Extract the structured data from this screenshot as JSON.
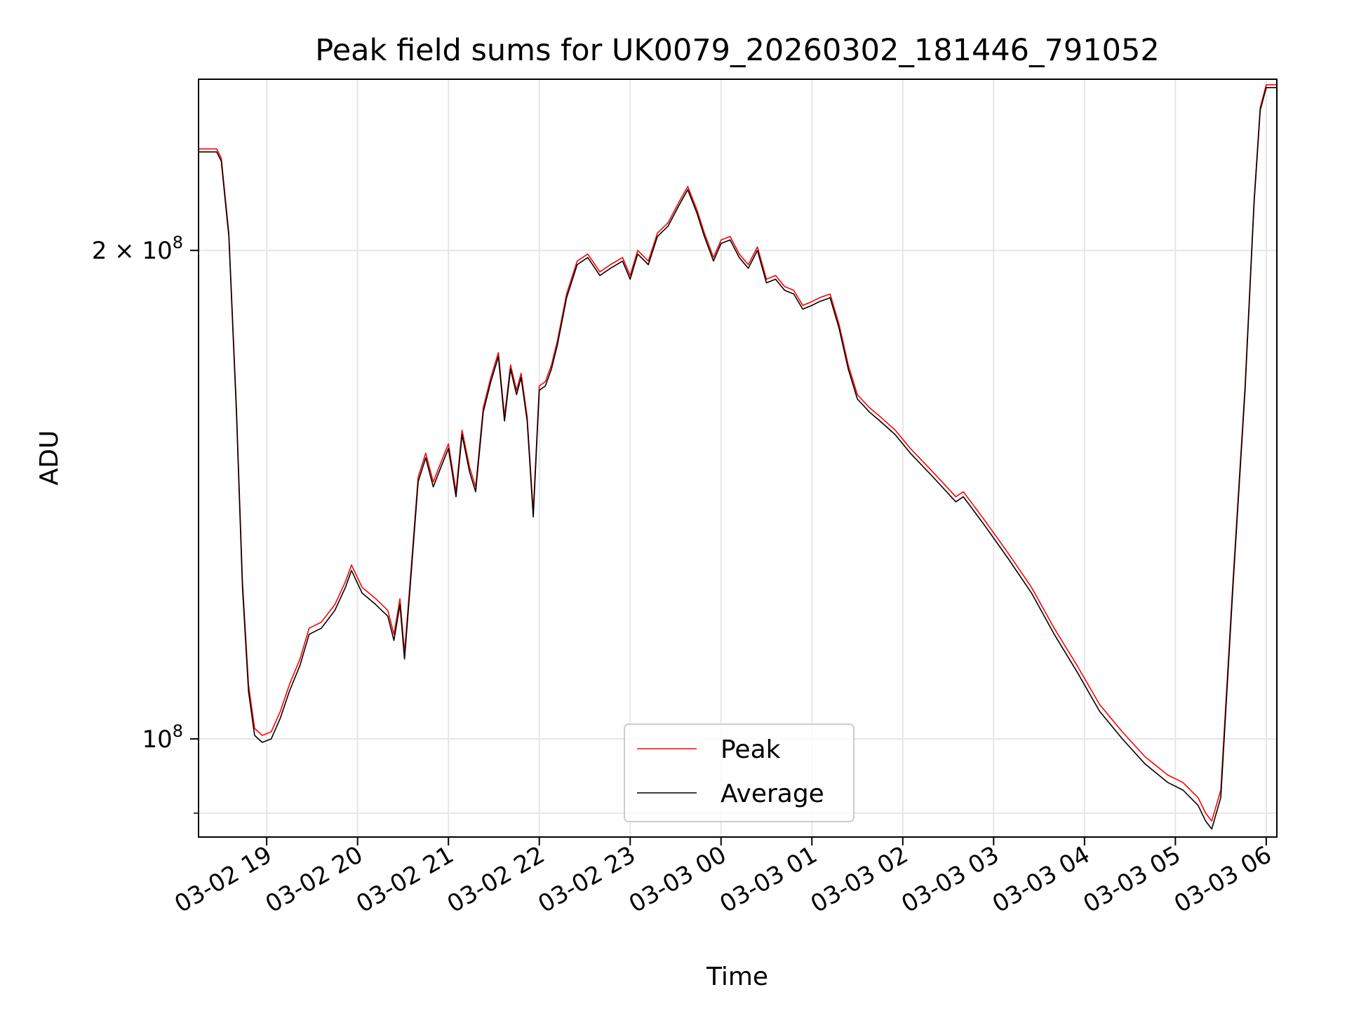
{
  "chart_data": {
    "type": "line",
    "title": "Peak field sums for UK0079_20260302_181446_791052",
    "xlabel": "Time",
    "ylabel": "ADU",
    "x_scale": "time",
    "y_scale": "log",
    "xlim": [
      "2026-03-02 18:15",
      "2026-03-03 06:07"
    ],
    "ylim": [
      87000000,
      255000000
    ],
    "x_ticks": [
      {
        "value": "2026-03-02 19:00",
        "label": "03-02 19"
      },
      {
        "value": "2026-03-02 20:00",
        "label": "03-02 20"
      },
      {
        "value": "2026-03-02 21:00",
        "label": "03-02 21"
      },
      {
        "value": "2026-03-02 22:00",
        "label": "03-02 22"
      },
      {
        "value": "2026-03-02 23:00",
        "label": "03-02 23"
      },
      {
        "value": "2026-03-03 00:00",
        "label": "03-03 00"
      },
      {
        "value": "2026-03-03 01:00",
        "label": "03-03 01"
      },
      {
        "value": "2026-03-03 02:00",
        "label": "03-03 02"
      },
      {
        "value": "2026-03-03 03:00",
        "label": "03-03 03"
      },
      {
        "value": "2026-03-03 04:00",
        "label": "03-03 04"
      },
      {
        "value": "2026-03-03 05:00",
        "label": "03-03 05"
      },
      {
        "value": "2026-03-03 06:00",
        "label": "03-03 06"
      }
    ],
    "y_ticks": [
      {
        "value": 100000000,
        "base": "10",
        "exp": "8",
        "label": ""
      },
      {
        "value": 200000000,
        "base": "10",
        "exp": "8",
        "label": "2 × "
      }
    ],
    "y_minor_ticks": [
      90000000
    ],
    "grid": true,
    "legend": {
      "position": "lower center",
      "entries": [
        "Peak",
        "Average"
      ]
    },
    "series": [
      {
        "name": "Peak",
        "color": "#ff0000",
        "x": [
          "2026-03-02 18:15",
          "2026-03-02 18:27",
          "2026-03-02 18:30",
          "2026-03-02 18:35",
          "2026-03-02 18:40",
          "2026-03-02 18:44",
          "2026-03-02 18:48",
          "2026-03-02 18:52",
          "2026-03-02 18:57",
          "2026-03-02 19:03",
          "2026-03-02 19:09",
          "2026-03-02 19:15",
          "2026-03-02 19:22",
          "2026-03-02 19:28",
          "2026-03-02 19:36",
          "2026-03-02 19:45",
          "2026-03-02 19:52",
          "2026-03-02 19:56",
          "2026-03-02 20:03",
          "2026-03-02 20:12",
          "2026-03-02 20:20",
          "2026-03-02 20:24",
          "2026-03-02 20:28",
          "2026-03-02 20:31",
          "2026-03-02 20:35",
          "2026-03-02 20:40",
          "2026-03-02 20:45",
          "2026-03-02 20:50",
          "2026-03-02 20:55",
          "2026-03-02 21:00",
          "2026-03-02 21:05",
          "2026-03-02 21:09",
          "2026-03-02 21:14",
          "2026-03-02 21:18",
          "2026-03-02 21:23",
          "2026-03-02 21:28",
          "2026-03-02 21:33",
          "2026-03-02 21:37",
          "2026-03-02 21:41",
          "2026-03-02 21:45",
          "2026-03-02 21:48",
          "2026-03-02 21:52",
          "2026-03-02 21:56",
          "2026-03-02 22:00",
          "2026-03-02 22:04",
          "2026-03-02 22:08",
          "2026-03-02 22:12",
          "2026-03-02 22:18",
          "2026-03-02 22:25",
          "2026-03-02 22:32",
          "2026-03-02 22:40",
          "2026-03-02 22:47",
          "2026-03-02 22:55",
          "2026-03-02 23:00",
          "2026-03-02 23:05",
          "2026-03-02 23:12",
          "2026-03-02 23:18",
          "2026-03-02 23:25",
          "2026-03-02 23:32",
          "2026-03-02 23:38",
          "2026-03-02 23:44",
          "2026-03-02 23:49",
          "2026-03-02 23:55",
          "2026-03-03 00:00",
          "2026-03-03 00:06",
          "2026-03-03 00:12",
          "2026-03-03 00:18",
          "2026-03-03 00:24",
          "2026-03-03 00:30",
          "2026-03-03 00:36",
          "2026-03-03 00:42",
          "2026-03-03 00:48",
          "2026-03-03 00:54",
          "2026-03-03 01:00",
          "2026-03-03 01:05",
          "2026-03-03 01:12",
          "2026-03-03 01:18",
          "2026-03-03 01:24",
          "2026-03-03 01:30",
          "2026-03-03 01:38",
          "2026-03-03 01:45",
          "2026-03-03 01:55",
          "2026-03-03 02:05",
          "2026-03-03 02:20",
          "2026-03-03 02:35",
          "2026-03-03 02:40",
          "2026-03-03 02:45",
          "2026-03-03 02:55",
          "2026-03-03 03:10",
          "2026-03-03 03:25",
          "2026-03-03 03:40",
          "2026-03-03 03:55",
          "2026-03-03 04:10",
          "2026-03-03 04:25",
          "2026-03-03 04:40",
          "2026-03-03 04:55",
          "2026-03-03 05:05",
          "2026-03-03 05:15",
          "2026-03-03 05:20",
          "2026-03-03 05:24",
          "2026-03-03 05:30",
          "2026-03-03 05:38",
          "2026-03-03 05:46",
          "2026-03-03 05:52",
          "2026-03-03 05:56",
          "2026-03-03 06:00",
          "2026-03-03 06:07"
        ],
        "values": [
          231000000,
          231000000,
          228000000,
          205000000,
          160000000,
          125000000,
          108000000,
          101500000,
          100500000,
          101000000,
          104000000,
          108000000,
          112000000,
          117000000,
          118000000,
          121000000,
          125000000,
          128000000,
          124000000,
          122000000,
          120000000,
          116000000,
          122000000,
          113000000,
          126000000,
          145000000,
          150000000,
          144000000,
          148000000,
          152000000,
          142000000,
          155000000,
          147000000,
          143000000,
          160000000,
          167000000,
          173000000,
          158000000,
          170000000,
          164000000,
          168000000,
          158000000,
          138000000,
          165000000,
          166000000,
          170000000,
          176000000,
          188000000,
          197000000,
          199000000,
          194000000,
          196000000,
          198000000,
          193000000,
          200000000,
          197000000,
          205000000,
          208000000,
          214000000,
          219000000,
          212000000,
          205000000,
          198000000,
          203000000,
          204000000,
          199000000,
          196000000,
          201000000,
          192000000,
          193000000,
          190000000,
          189000000,
          185000000,
          186000000,
          187000000,
          188000000,
          180000000,
          170000000,
          163000000,
          160000000,
          158000000,
          155000000,
          151000000,
          146000000,
          141000000,
          142000000,
          140000000,
          136000000,
          130000000,
          124000000,
          117000000,
          111000000,
          105000000,
          101000000,
          97500000,
          95000000,
          94000000,
          92000000,
          90000000,
          89000000,
          93000000,
          125000000,
          165000000,
          215000000,
          245000000,
          253000000,
          253000000
        ]
      },
      {
        "name": "Average",
        "color": "#000000",
        "x": [
          "2026-03-02 18:15",
          "2026-03-02 18:27",
          "2026-03-02 18:30",
          "2026-03-02 18:35",
          "2026-03-02 18:40",
          "2026-03-02 18:44",
          "2026-03-02 18:48",
          "2026-03-02 18:52",
          "2026-03-02 18:57",
          "2026-03-02 19:03",
          "2026-03-02 19:09",
          "2026-03-02 19:15",
          "2026-03-02 19:22",
          "2026-03-02 19:28",
          "2026-03-02 19:36",
          "2026-03-02 19:45",
          "2026-03-02 19:52",
          "2026-03-02 19:56",
          "2026-03-02 20:03",
          "2026-03-02 20:12",
          "2026-03-02 20:20",
          "2026-03-02 20:24",
          "2026-03-02 20:28",
          "2026-03-02 20:31",
          "2026-03-02 20:35",
          "2026-03-02 20:40",
          "2026-03-02 20:45",
          "2026-03-02 20:50",
          "2026-03-02 20:55",
          "2026-03-02 21:00",
          "2026-03-02 21:05",
          "2026-03-02 21:09",
          "2026-03-02 21:14",
          "2026-03-02 21:18",
          "2026-03-02 21:23",
          "2026-03-02 21:28",
          "2026-03-02 21:33",
          "2026-03-02 21:37",
          "2026-03-02 21:41",
          "2026-03-02 21:45",
          "2026-03-02 21:48",
          "2026-03-02 21:52",
          "2026-03-02 21:56",
          "2026-03-02 22:00",
          "2026-03-02 22:04",
          "2026-03-02 22:08",
          "2026-03-02 22:12",
          "2026-03-02 22:18",
          "2026-03-02 22:25",
          "2026-03-02 22:32",
          "2026-03-02 22:40",
          "2026-03-02 22:47",
          "2026-03-02 22:55",
          "2026-03-02 23:00",
          "2026-03-02 23:05",
          "2026-03-02 23:12",
          "2026-03-02 23:18",
          "2026-03-02 23:25",
          "2026-03-02 23:32",
          "2026-03-02 23:38",
          "2026-03-02 23:44",
          "2026-03-02 23:49",
          "2026-03-02 23:55",
          "2026-03-03 00:00",
          "2026-03-03 00:06",
          "2026-03-03 00:12",
          "2026-03-03 00:18",
          "2026-03-03 00:24",
          "2026-03-03 00:30",
          "2026-03-03 00:36",
          "2026-03-03 00:42",
          "2026-03-03 00:48",
          "2026-03-03 00:54",
          "2026-03-03 01:00",
          "2026-03-03 01:05",
          "2026-03-03 01:12",
          "2026-03-03 01:18",
          "2026-03-03 01:24",
          "2026-03-03 01:30",
          "2026-03-03 01:38",
          "2026-03-03 01:45",
          "2026-03-03 01:55",
          "2026-03-03 02:05",
          "2026-03-03 02:20",
          "2026-03-03 02:35",
          "2026-03-03 02:40",
          "2026-03-03 02:45",
          "2026-03-03 02:55",
          "2026-03-03 03:10",
          "2026-03-03 03:25",
          "2026-03-03 03:40",
          "2026-03-03 03:55",
          "2026-03-03 04:10",
          "2026-03-03 04:25",
          "2026-03-03 04:40",
          "2026-03-03 04:55",
          "2026-03-03 05:05",
          "2026-03-03 05:15",
          "2026-03-03 05:20",
          "2026-03-03 05:24",
          "2026-03-03 05:30",
          "2026-03-03 05:38",
          "2026-03-03 05:46",
          "2026-03-03 05:52",
          "2026-03-03 05:56",
          "2026-03-03 06:00",
          "2026-03-03 06:07"
        ],
        "values": [
          230000000,
          230000000,
          227000000,
          204000000,
          159000000,
          124000000,
          107000000,
          100500000,
          99500000,
          100000000,
          103000000,
          107000000,
          111000000,
          116000000,
          117000000,
          120000000,
          124000000,
          127000000,
          123000000,
          121000000,
          119000000,
          115000000,
          121000000,
          112000000,
          125000000,
          144000000,
          149000000,
          143000000,
          147000000,
          151000000,
          141000000,
          154000000,
          146000000,
          142000000,
          159000000,
          166000000,
          172000000,
          157000000,
          169000000,
          163000000,
          167000000,
          157000000,
          137000000,
          164000000,
          165000000,
          169000000,
          175000000,
          187000000,
          196000000,
          198000000,
          193000000,
          195000000,
          197000000,
          192000000,
          199000000,
          196000000,
          204000000,
          207000000,
          213000000,
          218000000,
          211000000,
          204000000,
          197000000,
          202000000,
          203000000,
          198000000,
          195000000,
          200000000,
          191000000,
          192000000,
          189000000,
          188000000,
          184000000,
          185000000,
          186000000,
          187000000,
          179000000,
          169000000,
          162000000,
          159000000,
          157000000,
          154000000,
          150000000,
          145000000,
          140000000,
          141000000,
          139000000,
          135000000,
          129000000,
          123000000,
          116000000,
          110000000,
          104000000,
          100000000,
          96500000,
          94000000,
          93000000,
          91000000,
          89000000,
          88000000,
          92000000,
          124000000,
          164000000,
          214000000,
          244000000,
          252000000,
          252000000
        ]
      }
    ]
  }
}
